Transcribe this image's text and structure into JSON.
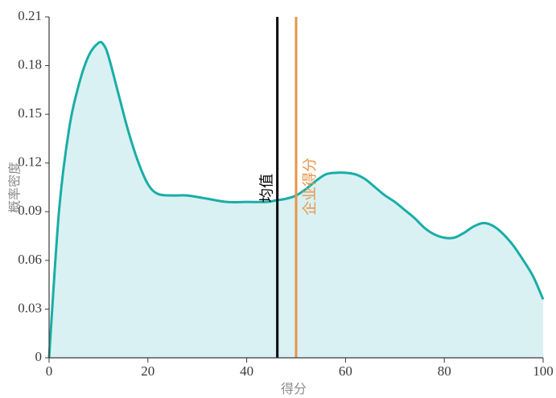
{
  "chart_data": {
    "type": "area",
    "title": "",
    "xlabel": "得分",
    "ylabel": "概率密度",
    "xlim": [
      0,
      100
    ],
    "ylim": [
      0,
      0.21
    ],
    "x_ticks": [
      "0",
      "20",
      "40",
      "60",
      "80",
      "100"
    ],
    "y_ticks": [
      "0",
      "0.03",
      "0.06",
      "0.09",
      "0.12",
      "0.15",
      "0.18",
      "0.21"
    ],
    "grid": false,
    "series": [
      {
        "color": "#1aada7",
        "fill": "#d9f1f2",
        "x": [
          0,
          2,
          4,
          6,
          8,
          10,
          11,
          12,
          14,
          16,
          18,
          20,
          22,
          25,
          28,
          32,
          36,
          40,
          44,
          46,
          48,
          50,
          52,
          54,
          56,
          58,
          60,
          62,
          64,
          66,
          68,
          70,
          72,
          74,
          76,
          78,
          80,
          82,
          84,
          86,
          88,
          90,
          92,
          94,
          96,
          98,
          100
        ],
        "y": [
          0,
          0.09,
          0.14,
          0.168,
          0.186,
          0.194,
          0.193,
          0.186,
          0.163,
          0.14,
          0.121,
          0.107,
          0.101,
          0.1,
          0.1,
          0.098,
          0.096,
          0.096,
          0.096,
          0.097,
          0.098,
          0.1,
          0.104,
          0.109,
          0.113,
          0.114,
          0.114,
          0.113,
          0.11,
          0.105,
          0.1,
          0.096,
          0.091,
          0.086,
          0.08,
          0.076,
          0.074,
          0.074,
          0.077,
          0.081,
          0.083,
          0.081,
          0.076,
          0.069,
          0.06,
          0.05,
          0.036
        ]
      }
    ],
    "reference_lines": [
      {
        "label": "均值",
        "x": 46.2,
        "color": "#000000"
      },
      {
        "label": "企业得分",
        "x": 50,
        "color": "#e8944a"
      }
    ]
  }
}
